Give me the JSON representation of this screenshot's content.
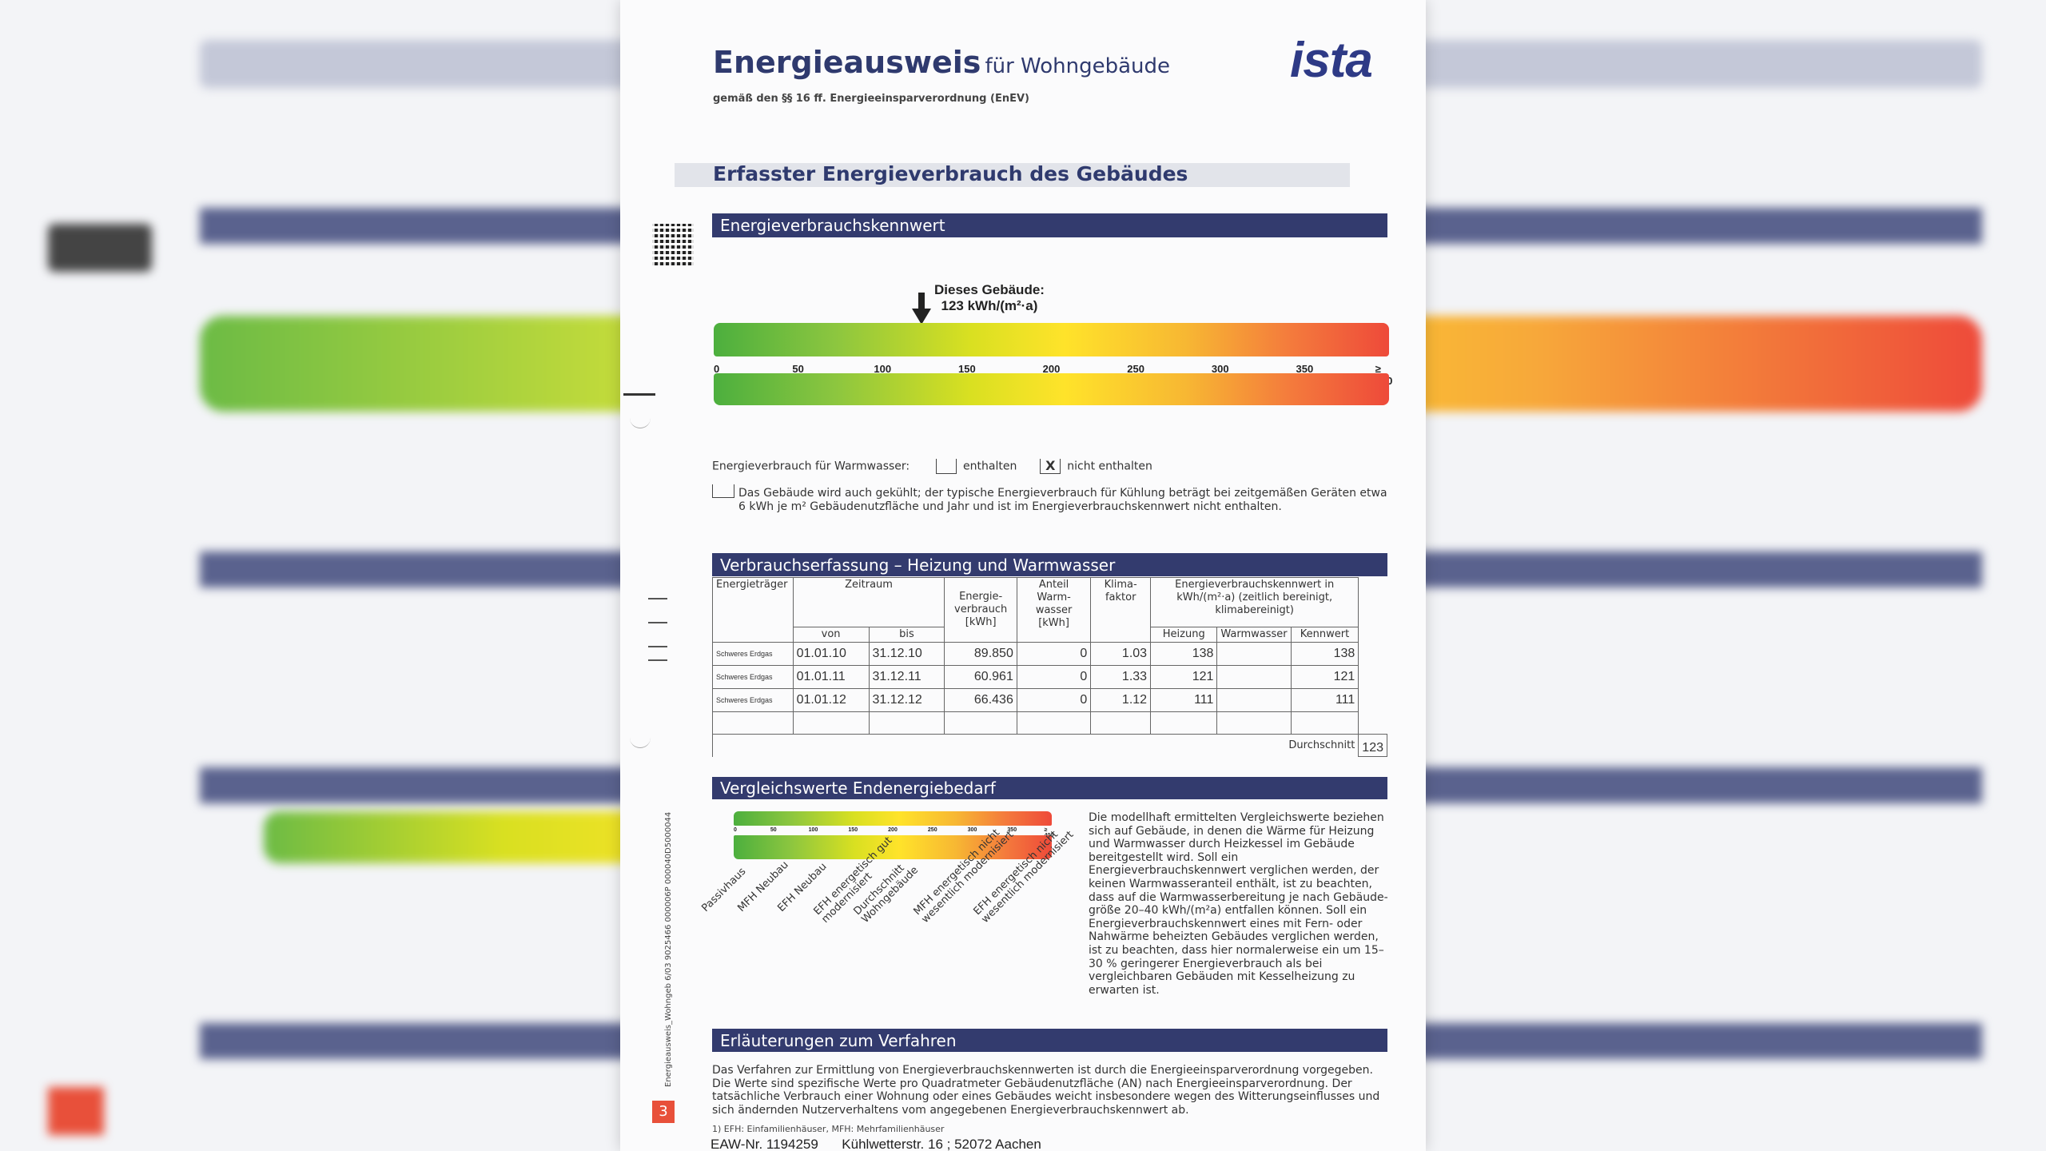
{
  "header": {
    "title_main": "Energieausweis",
    "title_suffix": "für Wohngebäude",
    "subtitle": "gemäß den §§ 16 ff. Energieeinsparverordnung (EnEV)",
    "logo": "ista"
  },
  "section_title": "Erfasster Energieverbrauch des Gebäudes",
  "kennwert": {
    "bar_title": "Energieverbrauchskennwert",
    "marker_line1": "Dieses Gebäude:",
    "marker_line2": "123 kWh/(m²·a)",
    "marker_value": 123,
    "scale_max": 400,
    "ticks": [
      "0",
      "50",
      "100",
      "150",
      "200",
      "250",
      "300",
      "350",
      "≥ 400"
    ]
  },
  "warmwasser": {
    "label": "Energieverbrauch für Warmwasser:",
    "option1": "enthalten",
    "option2": "nicht enthalten",
    "checked_mark": "X",
    "kuehlung_text": "Das Gebäude wird auch gekühlt; der typische Energieverbrauch für Kühlung beträgt bei zeitgemäßen Geräten etwa 6 kWh je m² Gebäudenutzfläche und Jahr und ist im Energieverbrauchskennwert nicht enthalten."
  },
  "table": {
    "bar_title": "Verbrauchserfassung – Heizung und Warmwasser",
    "headers": {
      "energietraeger": "Energieträger",
      "zeitraum": "Zeitraum",
      "von": "von",
      "bis": "bis",
      "verbrauch": "Energie-verbrauch [kWh]",
      "anteil": "Anteil Warm-wasser [kWh]",
      "klima": "Klima-faktor",
      "kennwert_group": "Energieverbrauchskennwert in kWh/(m²·a) (zeitlich bereinigt, klimabereinigt)",
      "heizung": "Heizung",
      "warmwasser": "Warmwasser",
      "kennwert": "Kennwert"
    },
    "rows": [
      {
        "traeger": "Schweres Erdgas",
        "von": "01.01.10",
        "bis": "31.12.10",
        "verbrauch": "89.850",
        "anteil": "0",
        "klima": "1.03",
        "heizung": "138",
        "warmwasser": "",
        "kennwert": "138"
      },
      {
        "traeger": "Schweres Erdgas",
        "von": "01.01.11",
        "bis": "31.12.11",
        "verbrauch": "60.961",
        "anteil": "0",
        "klima": "1.33",
        "heizung": "121",
        "warmwasser": "",
        "kennwert": "121"
      },
      {
        "traeger": "Schweres Erdgas",
        "von": "01.01.12",
        "bis": "31.12.12",
        "verbrauch": "66.436",
        "anteil": "0",
        "klima": "1.12",
        "heizung": "111",
        "warmwasser": "",
        "kennwert": "111"
      }
    ],
    "durchschnitt_label": "Durchschnitt",
    "durchschnitt_value": "123"
  },
  "vergleich": {
    "bar_title": "Vergleichswerte Endenergiebedarf",
    "ticks": [
      "0",
      "50",
      "100",
      "150",
      "200",
      "250",
      "300",
      "350",
      "≥ 400"
    ],
    "categories": [
      "Passivhaus",
      "MFH Neubau",
      "EFH Neubau",
      "EFH energetisch gut modernisiert",
      "Durchschnitt Wohngebäude",
      "MFH energetisch nicht wesentlich modernisiert",
      "EFH energetisch nicht wesentlich modernisiert"
    ],
    "text": "Die modellhaft ermittelten Vergleichswerte beziehen sich auf Gebäude, in denen die Wärme für Heizung und Warmwasser durch Heizkessel im Gebäude bereitgestellt wird. Soll ein Energieverbrauchskennwert verglichen werden, der keinen Warmwasseranteil enthält, ist zu beachten, dass auf die Warmwasserbereitung je nach Gebäude-größe 20–40 kWh/(m²a) entfallen können. Soll ein Energieverbrauchskennwert eines mit Fern- oder Nahwärme beheizten Gebäudes verglichen werden, ist zu beachten, dass hier normalerweise ein um 15–30 % geringerer Energieverbrauch als bei vergleichbaren Gebäuden mit Kesselheizung zu erwarten ist."
  },
  "erlaeuterung": {
    "bar_title": "Erläuterungen zum Verfahren",
    "text": "Das Verfahren zur Ermittlung von Energieverbrauchskennwerten ist durch die Energieeinsparverordnung vorgegeben. Die Werte sind spezifische Werte pro Quadratmeter Gebäudenutzfläche (AN) nach Energieeinsparverordnung. Der tatsächliche Verbrauch einer Wohnung oder eines Gebäudes weicht insbesondere wegen des Witterungseinflusses und sich ändernden Nutzerverhaltens vom angegebenen Energieverbrauchskennwert ab.",
    "footnote": "1) EFH: Einfamilienhäuser, MFH: Mehrfamilienhäuser"
  },
  "footer": {
    "page_number": "3",
    "eaw": "EAW-Nr. 1194259",
    "address": "Kühlwetterstr. 16 ; 52072 Aachen",
    "side_code": "Energieausweis_Wohngeb 6/03 9025466 000006P 000040D5000044"
  },
  "colors": {
    "bar_blue": "#333b6e",
    "logo_blue": "#2e3a86",
    "page_number_red": "#e8503a"
  }
}
